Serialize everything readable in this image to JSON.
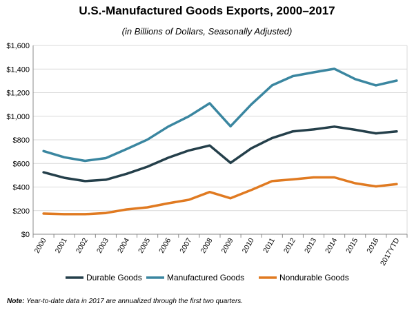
{
  "chart_data": {
    "type": "line",
    "title": "U.S.-Manufactured Goods Exports, 2000–2017",
    "subtitle": "(in Billions of Dollars, Seasonally Adjusted)",
    "categories": [
      "2000",
      "2001",
      "2002",
      "2003",
      "2004",
      "2005",
      "2006",
      "2007",
      "2008",
      "2009",
      "2010",
      "2011",
      "2012",
      "2013",
      "2014",
      "2015",
      "2016",
      "2017YTD"
    ],
    "ylim": [
      0,
      1600
    ],
    "yticks": [
      0,
      200,
      400,
      600,
      800,
      1000,
      1200,
      1400,
      1600
    ],
    "ytick_labels": [
      "$0",
      "$200",
      "$400",
      "$600",
      "$800",
      "$1,000",
      "$1,200",
      "$1,400",
      "$1,600"
    ],
    "grid": true,
    "legend_position": "bottom",
    "series": [
      {
        "name": "Durable Goods",
        "color": "#243f4a",
        "values": [
          525,
          478,
          450,
          462,
          512,
          572,
          648,
          710,
          752,
          605,
          728,
          815,
          872,
          888,
          912,
          885,
          855,
          872
        ]
      },
      {
        "name": "Manufactured Goods",
        "color": "#3a86a0",
        "values": [
          705,
          652,
          622,
          645,
          722,
          802,
          912,
          1000,
          1110,
          915,
          1100,
          1262,
          1340,
          1372,
          1402,
          1315,
          1262,
          1302
        ]
      },
      {
        "name": "Nondurable Goods",
        "color": "#e07a21",
        "values": [
          175,
          170,
          170,
          180,
          210,
          228,
          262,
          292,
          358,
          305,
          375,
          450,
          465,
          482,
          482,
          432,
          405,
          425
        ]
      }
    ]
  },
  "note": {
    "label": "Note:",
    "text": " Year-to-date data in 2017 are annualized through the first two quarters."
  }
}
